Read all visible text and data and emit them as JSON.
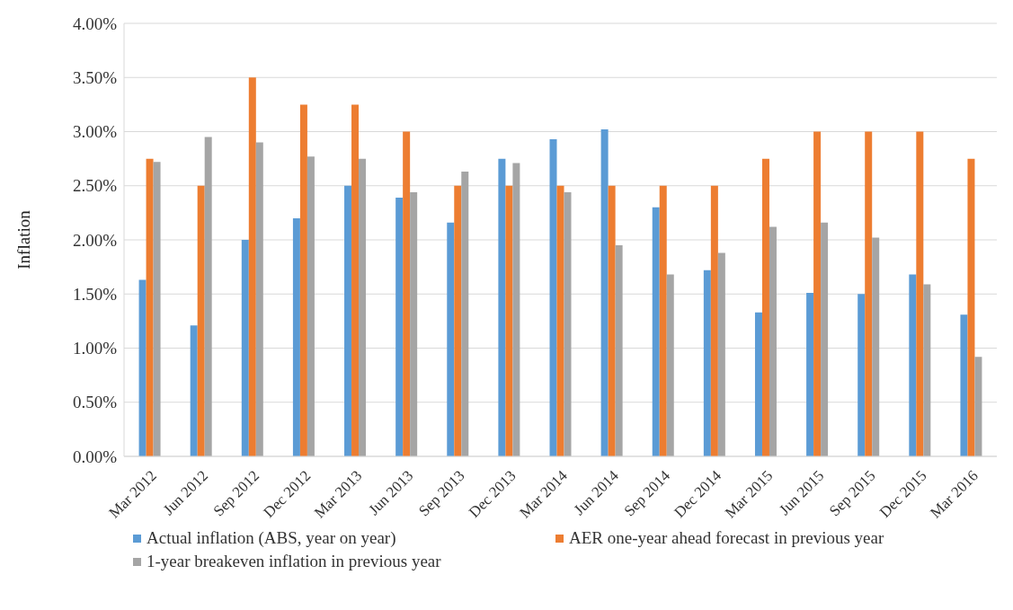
{
  "chart_data": {
    "type": "bar",
    "ylabel": "Inflation",
    "categories": [
      "Mar 2012",
      "Jun 2012",
      "Sep 2012",
      "Dec 2012",
      "Mar 2013",
      "Jun 2013",
      "Sep 2013",
      "Dec 2013",
      "Mar 2014",
      "Jun 2014",
      "Sep 2014",
      "Dec 2014",
      "Mar 2015",
      "Jun 2015",
      "Sep 2015",
      "Dec 2015",
      "Mar 2016"
    ],
    "series": [
      {
        "name": "Actual inflation (ABS, year on year)",
        "color": "#5b9bd5",
        "values": [
          1.63,
          1.21,
          2.0,
          2.2,
          2.5,
          2.39,
          2.16,
          2.75,
          2.93,
          3.02,
          2.3,
          1.72,
          1.33,
          1.51,
          1.5,
          1.68,
          1.31
        ]
      },
      {
        "name": "AER one-year ahead forecast in previous year",
        "color": "#ed7d31",
        "values": [
          2.75,
          2.5,
          3.5,
          3.25,
          3.25,
          3.0,
          2.5,
          2.5,
          2.5,
          2.5,
          2.5,
          2.5,
          2.75,
          3.0,
          3.0,
          3.0,
          2.75
        ]
      },
      {
        "name": "1-year breakeven inflation in previous year",
        "color": "#a5a5a5",
        "values": [
          2.72,
          2.95,
          2.9,
          2.77,
          2.75,
          2.44,
          2.63,
          2.71,
          2.44,
          1.95,
          1.68,
          1.88,
          2.12,
          2.16,
          2.02,
          1.59,
          0.92
        ]
      }
    ],
    "ylim": [
      0,
      4
    ],
    "yticks": [
      {
        "value": 0,
        "label": "0.00%"
      },
      {
        "value": 0.5,
        "label": "0.50%"
      },
      {
        "value": 1,
        "label": "1.00%"
      },
      {
        "value": 1.5,
        "label": "1.50%"
      },
      {
        "value": 2,
        "label": "2.00%"
      },
      {
        "value": 2.5,
        "label": "2.50%"
      },
      {
        "value": 3,
        "label": "3.00%"
      },
      {
        "value": 3.5,
        "label": "3.50%"
      },
      {
        "value": 4,
        "label": "4.00%"
      }
    ],
    "grid": "y",
    "legend": "bottom"
  }
}
